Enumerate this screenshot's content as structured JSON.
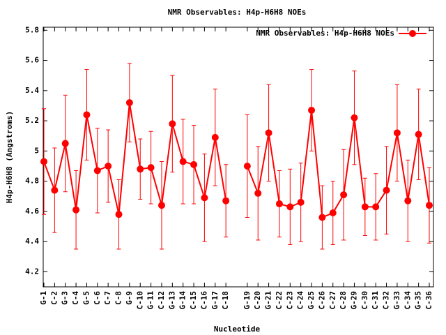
{
  "chart_data": {
    "type": "line",
    "title": "NMR Observables: H4p-H6H8 NOEs",
    "x_label": "Nucleotide",
    "y_label": "H4p-H6H8 (Angstroms)",
    "categories": [
      "G-1",
      "C-2",
      "G-3",
      "C-4",
      "G-5",
      "C-6",
      "C-7",
      "C-8",
      "G-9",
      "C-10",
      "G-11",
      "C-12",
      "G-13",
      "G-14",
      "C-15",
      "C-16",
      "G-17",
      "C-18",
      null,
      "G-19",
      "C-20",
      "G-21",
      "C-22",
      "C-23",
      "C-24",
      "G-25",
      "C-26",
      "C-27",
      "C-28",
      "G-29",
      "C-30",
      "C-31",
      "C-32",
      "G-33",
      "C-34",
      "G-35",
      "C-36"
    ],
    "series": [
      {
        "name": "NMR Observables: H4p-H6H8 NOEs",
        "color": "#ff0000",
        "values": [
          4.93,
          4.74,
          5.05,
          4.61,
          5.24,
          4.87,
          4.9,
          4.58,
          5.32,
          4.88,
          4.89,
          4.64,
          5.18,
          4.93,
          4.91,
          4.69,
          5.09,
          4.67,
          null,
          4.9,
          4.72,
          5.12,
          4.65,
          4.63,
          4.66,
          5.27,
          4.56,
          4.59,
          4.71,
          5.22,
          4.63,
          4.63,
          4.74,
          5.12,
          4.67,
          5.11,
          4.64
        ],
        "errors": [
          0.35,
          0.28,
          0.32,
          0.26,
          0.3,
          0.28,
          0.24,
          0.23,
          0.26,
          0.2,
          0.24,
          0.29,
          0.32,
          0.28,
          0.26,
          0.29,
          0.32,
          0.24,
          null,
          0.34,
          0.31,
          0.32,
          0.22,
          0.25,
          0.26,
          0.27,
          0.21,
          0.21,
          0.3,
          0.31,
          0.19,
          0.22,
          0.29,
          0.32,
          0.27,
          0.3,
          0.25
        ]
      }
    ],
    "ylim": [
      4.1,
      5.82
    ],
    "yticks": [
      4.2,
      4.4,
      4.6,
      4.8,
      5,
      5.2,
      5.4,
      5.6,
      5.8
    ],
    "legend": "top-right"
  }
}
